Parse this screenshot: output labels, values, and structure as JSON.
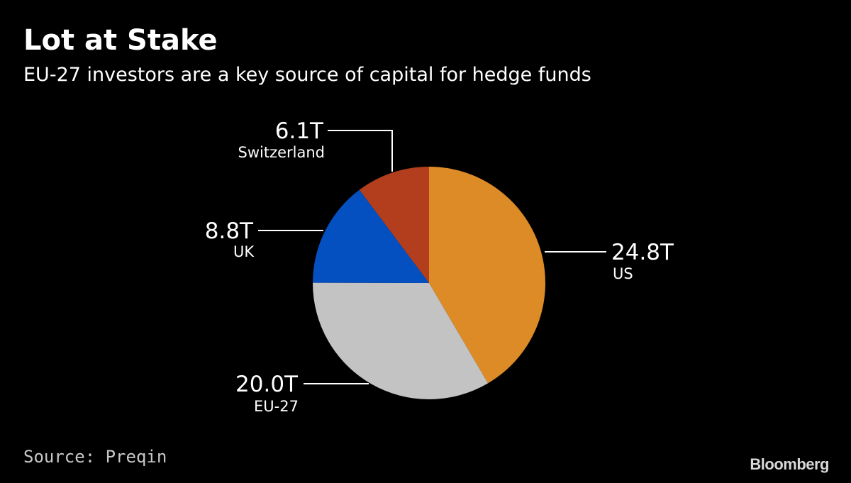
{
  "chart_data": {
    "type": "pie",
    "title": "Lot at Stake",
    "subtitle": "EU-27 investors are a key source of capital for hedge funds",
    "source": "Source: Preqin",
    "slices": [
      {
        "name": "US",
        "value": 24.8,
        "value_label": "24.8T",
        "color": "#dc8b26"
      },
      {
        "name": "EU-27",
        "value": 20.0,
        "value_label": "20.0T",
        "color": "#c3c3c3"
      },
      {
        "name": "UK",
        "value": 8.8,
        "value_label": "8.8T",
        "color": "#0550c0"
      },
      {
        "name": "Switzerland",
        "value": 6.1,
        "value_label": "6.1T",
        "color": "#b23e1d"
      }
    ],
    "start_angle": "12 o'clock",
    "direction": "clockwise"
  },
  "brand": {
    "logo_text": "Bloomberg"
  }
}
